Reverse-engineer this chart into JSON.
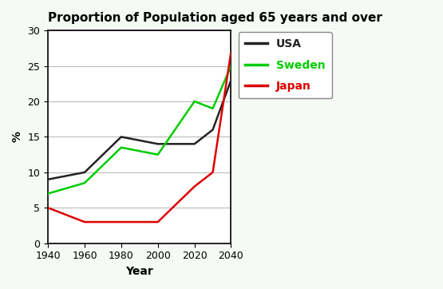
{
  "title": "Proportion of Population aged 65 years and over",
  "xlabel": "Year",
  "ylabel": "%",
  "years": [
    1940,
    1960,
    1980,
    1990,
    2000,
    2020,
    2030,
    2040
  ],
  "usa": [
    9,
    10,
    15,
    14.5,
    14,
    14,
    16,
    23
  ],
  "sweden": [
    7,
    8.5,
    13.5,
    13,
    12.5,
    20,
    19,
    25
  ],
  "japan": [
    5,
    3,
    3,
    3,
    3,
    8,
    10,
    27
  ],
  "usa_color": "#222222",
  "sweden_color": "#00cc00",
  "japan_color": "#dd0000",
  "ylim": [
    0,
    30
  ],
  "xlim": [
    1940,
    2040
  ],
  "xticks": [
    1940,
    1960,
    1980,
    2000,
    2020,
    2040
  ],
  "yticks": [
    0,
    5,
    10,
    15,
    20,
    25,
    30
  ],
  "bg_color": "#f5faf5",
  "plot_bg": "#ffffff",
  "legend_labels": [
    "USA",
    "Sweden",
    "Japan"
  ],
  "linewidth": 1.8,
  "title_fontsize": 11,
  "axis_label_fontsize": 10,
  "tick_fontsize": 9,
  "legend_fontsize": 10
}
